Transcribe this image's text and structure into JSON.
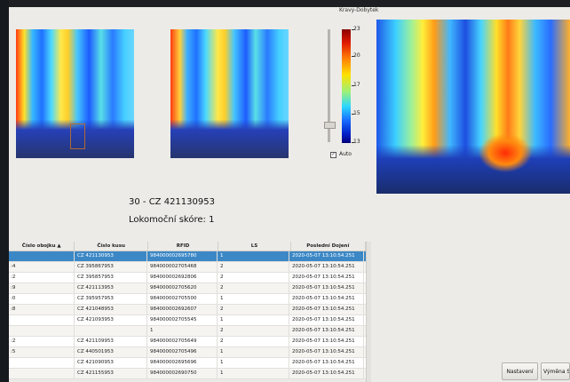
{
  "window": {
    "title": "Kravy-Dobytek"
  },
  "colorbar": {
    "ticks": [
      "23",
      "20",
      "17",
      "15",
      "13"
    ],
    "auto_label": "Auto",
    "auto_checked": true,
    "colors": {
      "top": "#8a0000",
      "bottom": "#00007a"
    }
  },
  "cow": {
    "title": "30 - CZ 421130953",
    "score": "Lokomoční skóre: 1"
  },
  "table": {
    "columns": [
      "Číslo obojku",
      "Číslo kusu",
      "RFID",
      "LS",
      "Poslední Dojení"
    ],
    "sort_indicator": "▲",
    "rows": [
      {
        "cells": [
          "",
          "CZ 421130953",
          "984000002695780",
          "1",
          "2020-05-07 13:10:54.251"
        ],
        "selected": true
      },
      {
        "cells": [
          ":4",
          "CZ 395867953",
          "984000002705468",
          "2",
          "2020-05-07 13:10:54.251"
        ]
      },
      {
        "cells": [
          ":2",
          "CZ 395857953",
          "984000002692806",
          "2",
          "2020-05-07 13:10:54.251"
        ]
      },
      {
        "cells": [
          ":9",
          "CZ 421113953",
          "984000002705620",
          "2",
          "2020-05-07 13:10:54.251"
        ]
      },
      {
        "cells": [
          ":0",
          "CZ 395957953",
          "984000002705500",
          "1",
          "2020-05-07 13:10:54.251"
        ]
      },
      {
        "cells": [
          ":8",
          "CZ 421048953",
          "984000002692607",
          "2",
          "2020-05-07 13:10:54.251"
        ]
      },
      {
        "cells": [
          "",
          "CZ 421093953",
          "984000002705545",
          "1",
          "2020-05-07 13:10:54.251"
        ]
      },
      {
        "cells": [
          "",
          "",
          "1",
          "2",
          "2020-05-07 13:10:54.251"
        ]
      },
      {
        "cells": [
          ":2",
          "CZ 421109953",
          "984000002705649",
          "2",
          "2020-05-07 13:10:54.251"
        ]
      },
      {
        "cells": [
          ":5",
          "CZ 440501953",
          "984000002705496",
          "1",
          "2020-05-07 13:10:54.251"
        ]
      },
      {
        "cells": [
          "",
          "CZ 421090953",
          "984000002695696",
          "1",
          "2020-05-07 13:10:54.251"
        ]
      },
      {
        "cells": [
          "",
          "CZ 421155953",
          "984000002690750",
          "1",
          "2020-05-07 13:10:54.251"
        ]
      }
    ]
  },
  "buttons": {
    "settings": "Nastavení",
    "export": "Výměna St"
  }
}
